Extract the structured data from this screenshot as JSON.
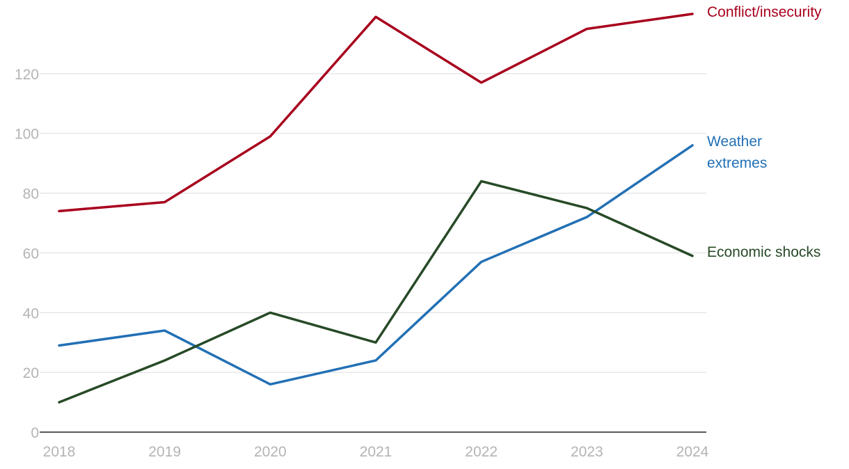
{
  "chart_data": {
    "type": "line",
    "title": "",
    "xlabel": "",
    "ylabel": "",
    "x": [
      "2018",
      "2019",
      "2020",
      "2021",
      "2022",
      "2023",
      "2024"
    ],
    "ylim": [
      0,
      140
    ],
    "yticks": [
      "0",
      "20",
      "40",
      "60",
      "80",
      "100",
      "120"
    ],
    "grid": true,
    "legend": "direct labels at line ends",
    "series": [
      {
        "name": "Conflict/insecurity",
        "label_lines": [
          "Conflict/insecurity"
        ],
        "color": "#a8001d",
        "values": [
          74,
          77,
          99,
          139,
          117,
          135,
          140
        ]
      },
      {
        "name": "Weather extremes",
        "label_lines": [
          "Weather",
          "extremes"
        ],
        "color": "#2270b5",
        "values": [
          29,
          34,
          16,
          24,
          57,
          72,
          96
        ]
      },
      {
        "name": "Economic shocks",
        "label_lines": [
          "Economic shocks"
        ],
        "color": "#274a26",
        "values": [
          10,
          24,
          40,
          30,
          84,
          75,
          59
        ]
      }
    ]
  }
}
